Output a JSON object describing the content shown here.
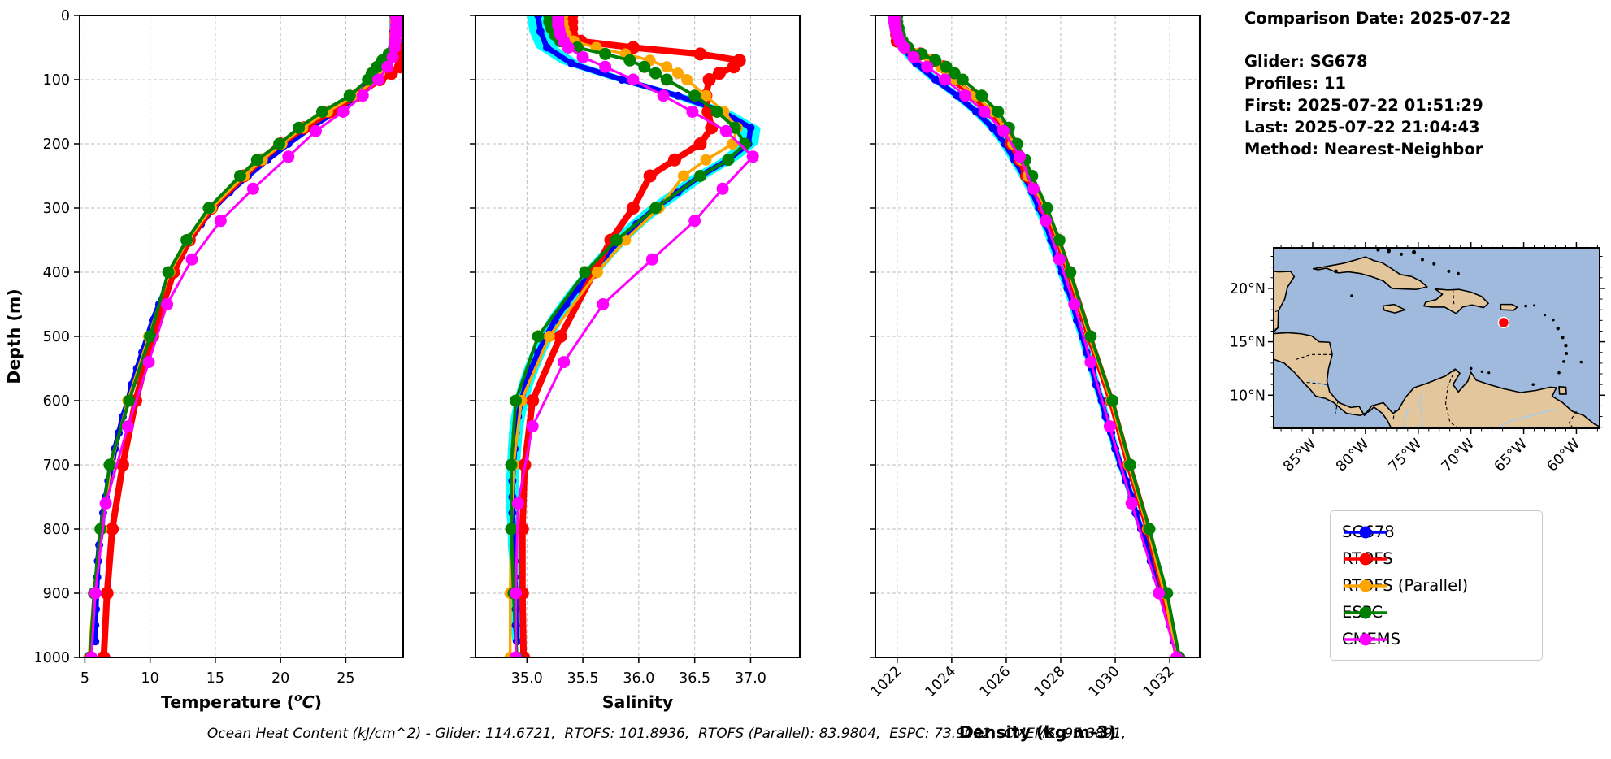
{
  "info": {
    "comparison_date": "Comparison Date: 2025-07-22",
    "glider": "Glider: SG678",
    "profiles": "Profiles: 11",
    "first": "First: 2025-07-22 01:51:29",
    "last": "Last: 2025-07-22 21:04:43",
    "method": "Method: Nearest-Neighbor"
  },
  "footer": {
    "text": "Ocean Heat Content (kJ/cm^2) - Glider: 114.6721,  RTOFS: 101.8936,  RTOFS (Parallel): 83.9804,  ESPC: 73.9092,  CMEMS: 95.3891,"
  },
  "legend": {
    "items": [
      {
        "label": "SG678",
        "color": "#0000ff"
      },
      {
        "label": "RTOFS",
        "color": "#ff0000"
      },
      {
        "label": "RTOFS (Parallel)",
        "color": "#ffa500"
      },
      {
        "label": "ESPC",
        "color": "#008000"
      },
      {
        "label": "CMEMS",
        "color": "#ff00ff"
      }
    ]
  },
  "map": {
    "sea_color": "#9fbadd",
    "land_color": "#e4c69c",
    "river_color": "#a9cbe8",
    "xtick_labels": [
      "85°W",
      "80°W",
      "75°W",
      "70°W",
      "65°W",
      "60°W"
    ],
    "xticks": [
      -85,
      -80,
      -75,
      -70,
      -65,
      -60
    ],
    "ytick_labels": [
      "20°N",
      "15°N",
      "10°N"
    ],
    "yticks": [
      20,
      15,
      10
    ],
    "lon_range": [
      -88.7,
      -57.8
    ],
    "lat_range": [
      6.9,
      23.8
    ],
    "marker": {
      "lon": -66.9,
      "lat": 16.8,
      "color": "#ff0000"
    }
  },
  "chart_data": {
    "type": "line",
    "title": "",
    "ylabel": "Depth (m)",
    "ylim": [
      0,
      1000
    ],
    "y_inverted": true,
    "grid": true,
    "yticks": [
      0,
      100,
      200,
      300,
      400,
      500,
      600,
      700,
      800,
      900,
      1000
    ],
    "ytick_labels": [
      "0",
      "100",
      "200",
      "300",
      "400",
      "500",
      "600",
      "700",
      "800",
      "900",
      "1000"
    ],
    "panels": [
      {
        "xlabel": "Temperature (°C)",
        "xlabel_parts": {
          "pre": "Temperature (",
          "sup": "o",
          "it": "C",
          "post": ")"
        },
        "value_key": "temperature",
        "xlim": [
          4.6,
          29.4
        ],
        "xticks": [
          5,
          10,
          15,
          20,
          25
        ],
        "xtick_labels": [
          "5",
          "10",
          "15",
          "20",
          "25"
        ],
        "xtick_rotation": 0
      },
      {
        "xlabel": "Salinity",
        "value_key": "salinity",
        "xlim": [
          34.54,
          37.44
        ],
        "xticks": [
          35.0,
          35.5,
          36.0,
          36.5,
          37.0
        ],
        "xtick_labels": [
          "35.0",
          "35.5",
          "36.0",
          "36.5",
          "37.0"
        ],
        "xtick_rotation": 0
      },
      {
        "xlabel": "Density (kg m-3)",
        "value_key": "density",
        "xlim": [
          1021.2,
          1033.1
        ],
        "xticks": [
          1022,
          1024,
          1026,
          1028,
          1030,
          1032
        ],
        "xtick_labels": [
          "1022",
          "1024",
          "1026",
          "1028",
          "1030",
          "1032"
        ],
        "xtick_rotation": 45
      }
    ],
    "series": [
      {
        "name": "SG678",
        "color": "#0000ff",
        "line_width": 6.5,
        "marker_radius": 5,
        "envelope_color": "#00ffff",
        "envelope_halfwidth": {
          "temperature": 0.32,
          "salinity": 0.1,
          "density": 0.22
        },
        "depths": [
          0,
          25,
          50,
          75,
          100,
          125,
          150,
          175,
          200,
          225,
          250,
          275,
          300,
          325,
          350,
          375,
          400,
          425,
          450,
          475,
          500,
          525,
          550,
          575,
          600,
          625,
          650,
          675,
          700,
          725,
          750,
          775,
          800,
          825,
          850,
          875,
          900,
          925,
          950,
          975
        ],
        "temperature": [
          28.65,
          28.65,
          28.6,
          28.2,
          27.1,
          25.9,
          24.2,
          22.3,
          20.6,
          19.0,
          17.5,
          16.1,
          14.9,
          13.9,
          13.1,
          12.4,
          11.8,
          11.2,
          10.7,
          10.2,
          9.8,
          9.4,
          9.0,
          8.6,
          8.3,
          7.9,
          7.6,
          7.3,
          7.1,
          6.8,
          6.6,
          6.4,
          6.3,
          6.1,
          6.0,
          5.95,
          5.9,
          5.85,
          5.8,
          5.8
        ],
        "salinity": [
          35.1,
          35.12,
          35.18,
          35.4,
          35.85,
          36.35,
          36.75,
          37.0,
          36.98,
          36.8,
          36.55,
          36.35,
          36.15,
          35.98,
          35.83,
          35.7,
          35.58,
          35.46,
          35.35,
          35.25,
          35.17,
          35.1,
          35.04,
          34.99,
          34.95,
          34.92,
          34.9,
          34.89,
          34.88,
          34.87,
          34.87,
          34.87,
          34.88,
          34.88,
          34.89,
          34.89,
          34.9,
          34.9,
          34.9,
          34.91
        ],
        "density": [
          1021.85,
          1021.95,
          1022.2,
          1022.7,
          1023.4,
          1024.2,
          1024.9,
          1025.5,
          1025.95,
          1026.3,
          1026.65,
          1026.95,
          1027.2,
          1027.45,
          1027.65,
          1027.85,
          1028.05,
          1028.25,
          1028.45,
          1028.6,
          1028.8,
          1028.95,
          1029.15,
          1029.3,
          1029.5,
          1029.65,
          1029.85,
          1030.0,
          1030.2,
          1030.4,
          1030.6,
          1030.75,
          1030.95,
          1031.15,
          1031.3,
          1031.5,
          1031.7,
          1031.85,
          1032.0,
          1032.15
        ]
      },
      {
        "name": "RTOFS",
        "color": "#ff0000",
        "line_width": 8,
        "marker_radius": 8,
        "depths": [
          0,
          10,
          20,
          30,
          40,
          50,
          60,
          70,
          80,
          90,
          100,
          125,
          150,
          175,
          200,
          225,
          250,
          300,
          350,
          400,
          500,
          600,
          700,
          800,
          900,
          1000
        ],
        "temperature": [
          28.85,
          28.85,
          28.85,
          28.8,
          28.8,
          28.9,
          29.1,
          29.3,
          29.2,
          28.5,
          27.6,
          25.8,
          23.8,
          21.8,
          20.0,
          18.5,
          17.2,
          14.7,
          13.0,
          11.8,
          10.2,
          8.9,
          7.9,
          7.1,
          6.7,
          6.45
        ],
        "salinity": [
          35.4,
          35.4,
          35.4,
          35.4,
          35.48,
          35.95,
          36.55,
          36.9,
          36.85,
          36.72,
          36.63,
          36.6,
          36.62,
          36.65,
          36.55,
          36.32,
          36.1,
          35.95,
          35.75,
          35.6,
          35.3,
          35.05,
          34.98,
          34.96,
          34.96,
          34.97
        ],
        "density": [
          1021.95,
          1021.95,
          1021.96,
          1021.98,
          1022.0,
          1022.3,
          1022.85,
          1023.35,
          1023.7,
          1023.9,
          1024.05,
          1024.8,
          1025.4,
          1025.9,
          1026.2,
          1026.5,
          1026.75,
          1027.4,
          1027.9,
          1028.3,
          1029.05,
          1029.85,
          1030.5,
          1031.2,
          1031.8,
          1032.3
        ]
      },
      {
        "name": "RTOFS (Parallel)",
        "color": "#ffa500",
        "line_width": 3.5,
        "marker_radius": 7,
        "depths": [
          0,
          10,
          20,
          30,
          40,
          50,
          60,
          70,
          80,
          90,
          100,
          125,
          150,
          175,
          200,
          225,
          250,
          300,
          350,
          400,
          500,
          600,
          700,
          800,
          900,
          1000
        ],
        "temperature": [
          28.85,
          28.8,
          28.8,
          28.78,
          28.75,
          28.7,
          28.5,
          28.2,
          27.95,
          27.6,
          27.3,
          25.7,
          23.6,
          21.7,
          20.1,
          18.6,
          17.2,
          14.7,
          12.9,
          11.5,
          9.9,
          8.3,
          7.0,
          6.3,
          5.7,
          5.3
        ],
        "salinity": [
          35.32,
          35.32,
          35.33,
          35.35,
          35.42,
          35.62,
          35.88,
          36.1,
          36.25,
          36.35,
          36.43,
          36.6,
          36.76,
          36.88,
          36.84,
          36.6,
          36.4,
          36.18,
          35.88,
          35.63,
          35.2,
          34.95,
          34.88,
          34.86,
          34.85,
          34.85
        ],
        "density": [
          1021.95,
          1021.96,
          1021.98,
          1022.0,
          1022.1,
          1022.35,
          1022.75,
          1023.2,
          1023.6,
          1023.85,
          1024.1,
          1024.9,
          1025.5,
          1025.95,
          1026.25,
          1026.55,
          1026.8,
          1027.45,
          1027.9,
          1028.3,
          1029.05,
          1029.85,
          1030.5,
          1031.2,
          1031.8,
          1032.25
        ]
      },
      {
        "name": "ESPC",
        "color": "#008000",
        "line_width": 4,
        "marker_radius": 7.5,
        "depths": [
          0,
          10,
          20,
          30,
          40,
          50,
          60,
          70,
          80,
          90,
          100,
          125,
          150,
          175,
          200,
          225,
          250,
          300,
          350,
          400,
          500,
          600,
          700,
          800,
          900,
          1000
        ],
        "temperature": [
          29.0,
          28.95,
          28.9,
          28.85,
          28.8,
          28.7,
          28.3,
          27.8,
          27.4,
          27.0,
          26.7,
          25.3,
          23.2,
          21.4,
          19.9,
          18.2,
          16.9,
          14.5,
          12.8,
          11.4,
          10.0,
          8.4,
          6.9,
          6.2,
          5.7,
          5.4
        ],
        "salinity": [
          35.2,
          35.2,
          35.22,
          35.25,
          35.3,
          35.45,
          35.7,
          35.92,
          36.05,
          36.15,
          36.25,
          36.5,
          36.7,
          36.86,
          36.95,
          36.8,
          36.55,
          36.15,
          35.8,
          35.52,
          35.1,
          34.9,
          34.86,
          34.86,
          34.88,
          34.91
        ],
        "density": [
          1022.0,
          1022.0,
          1022.05,
          1022.1,
          1022.2,
          1022.4,
          1022.9,
          1023.4,
          1023.8,
          1024.1,
          1024.4,
          1025.1,
          1025.7,
          1026.1,
          1026.4,
          1026.7,
          1026.95,
          1027.5,
          1027.95,
          1028.35,
          1029.1,
          1029.9,
          1030.55,
          1031.25,
          1031.9,
          1032.35
        ]
      },
      {
        "name": "CMEMS",
        "color": "#ff00ff",
        "line_width": 3,
        "marker_radius": 7.5,
        "depths": [
          0,
          5,
          10,
          16,
          22,
          30,
          40,
          50,
          65,
          80,
          100,
          125,
          150,
          180,
          220,
          270,
          320,
          380,
          450,
          540,
          640,
          760,
          900,
          1000
        ],
        "temperature": [
          28.9,
          28.9,
          28.9,
          28.88,
          28.87,
          28.85,
          28.8,
          28.75,
          28.6,
          28.2,
          27.5,
          26.3,
          24.8,
          22.7,
          20.6,
          17.9,
          15.4,
          13.2,
          11.3,
          9.9,
          8.3,
          6.6,
          5.8,
          5.5
        ],
        "salinity": [
          35.28,
          35.28,
          35.28,
          35.28,
          35.29,
          35.3,
          35.33,
          35.37,
          35.5,
          35.7,
          35.95,
          36.22,
          36.48,
          36.78,
          37.02,
          36.75,
          36.5,
          36.12,
          35.68,
          35.33,
          35.05,
          34.92,
          34.9,
          34.9
        ],
        "density": [
          1021.9,
          1021.9,
          1021.9,
          1021.92,
          1021.95,
          1022.0,
          1022.1,
          1022.25,
          1022.6,
          1023.1,
          1023.75,
          1024.5,
          1025.2,
          1025.9,
          1026.5,
          1027.0,
          1027.45,
          1027.95,
          1028.5,
          1029.1,
          1029.8,
          1030.6,
          1031.6,
          1032.25
        ]
      }
    ]
  }
}
